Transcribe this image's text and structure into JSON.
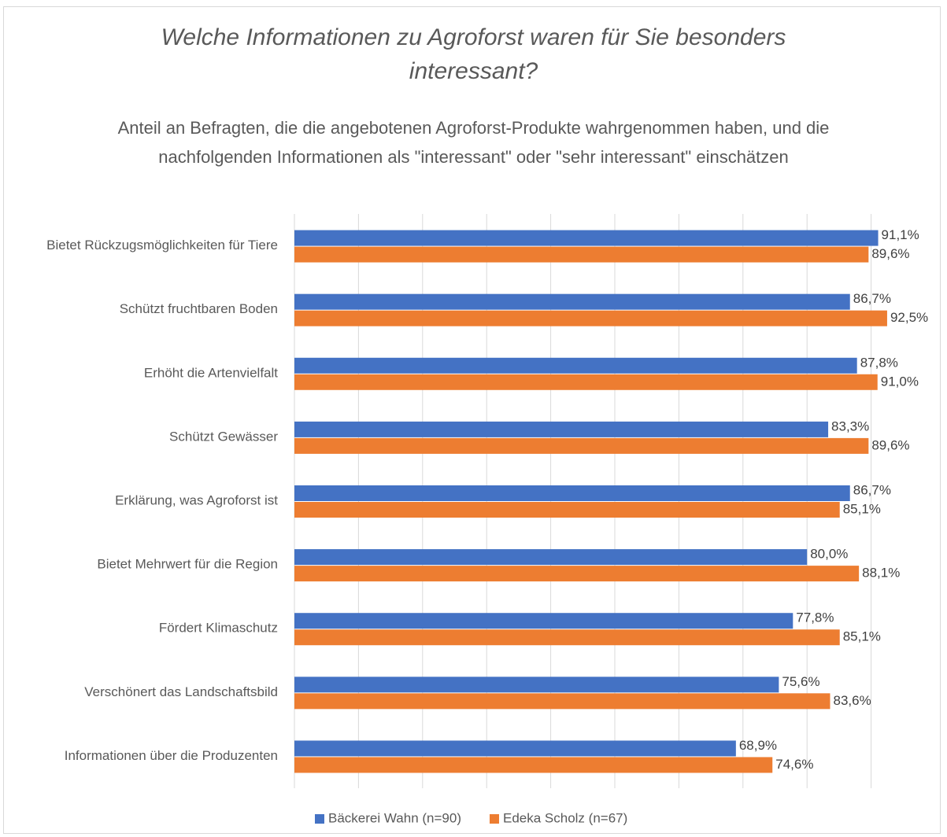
{
  "chart_data": {
    "type": "bar",
    "orientation": "horizontal",
    "title": "Welche Informationen zu Agroforst waren für Sie besonders interessant?",
    "subtitle": "Anteil an Befragten, die die angebotenen Agroforst-Produkte wahrgenommen haben, und die nachfolgenden Informationen als \"interessant\" oder \"sehr interessant\" einschätzen",
    "categories": [
      "Bietet Rückzugsmöglichkeiten für Tiere",
      "Schützt fruchtbaren Boden",
      "Erhöht die Artenvielfalt",
      "Schützt Gewässer",
      "Erklärung, was Agroforst ist",
      "Bietet Mehrwert für die Region",
      "Fördert Klimaschutz",
      "Verschönert das Landschaftsbild",
      "Informationen über die Produzenten"
    ],
    "series": [
      {
        "name": "Bäckerei Wahn (n=90)",
        "color": "#4472c4",
        "values": [
          91.1,
          86.7,
          87.8,
          83.3,
          86.7,
          80.0,
          77.8,
          75.6,
          68.9
        ],
        "value_labels": [
          "91,1%",
          "86,7%",
          "87,8%",
          "83,3%",
          "86,7%",
          "80,0%",
          "77,8%",
          "75,6%",
          "68,9%"
        ]
      },
      {
        "name": "Edeka Scholz (n=67)",
        "color": "#ed7d31",
        "values": [
          89.6,
          92.5,
          91.0,
          89.6,
          85.1,
          88.1,
          85.1,
          83.6,
          74.6
        ],
        "value_labels": [
          "89,6%",
          "92,5%",
          "91,0%",
          "89,6%",
          "85,1%",
          "88,1%",
          "85,1%",
          "83,6%",
          "74,6%"
        ]
      }
    ],
    "xlim": [
      0,
      100
    ],
    "xticks": [
      0,
      10,
      20,
      30,
      40,
      50,
      60,
      70,
      80,
      90
    ],
    "grid": true,
    "legend": "bottom"
  }
}
